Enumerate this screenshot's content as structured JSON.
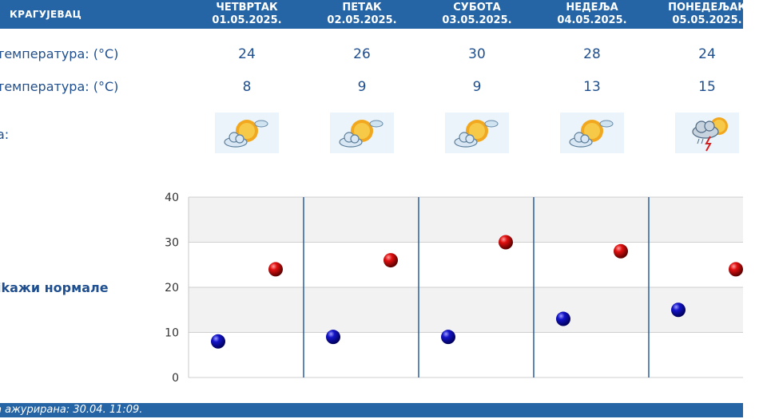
{
  "header": {
    "city": "КРАГУЈЕВАЦ"
  },
  "days": [
    {
      "name": "ЧЕТВРТАК",
      "date": "01.05.2025.",
      "max": "24",
      "min": "8",
      "icon": "partly-cloudy-sun-icon"
    },
    {
      "name": "ПЕТАК",
      "date": "02.05.2025.",
      "max": "26",
      "min": "9",
      "icon": "partly-cloudy-sun-icon"
    },
    {
      "name": "СУБОТА",
      "date": "03.05.2025.",
      "max": "30",
      "min": "9",
      "icon": "partly-cloudy-sun-icon"
    },
    {
      "name": "НЕДЕЉА",
      "date": "04.05.2025.",
      "max": "28",
      "min": "13",
      "icon": "partly-cloudy-sun-icon"
    },
    {
      "name": "ПОНЕДЕЉАК",
      "date": "05.05.2025.",
      "max": "24",
      "min": "15",
      "icon": "thunderstorm-sun-icon"
    }
  ],
  "rows": {
    "max_label": "температура: (°C)",
    "min_label": "температура: (°C)",
    "weather_label": "а:"
  },
  "normals_link": "ikaжи нормале",
  "footer": {
    "updated": "а ажурирана:  30.04.  11:09."
  },
  "colors": {
    "header": "#2565a6",
    "max_marker": "#cc0000",
    "min_marker": "#1010aa",
    "text": "#1f4f8f"
  },
  "chart_data": {
    "type": "scatter",
    "categories": [
      "01.05.2025.",
      "02.05.2025.",
      "03.05.2025.",
      "04.05.2025.",
      "05.05.2025."
    ],
    "series": [
      {
        "values": [
          24,
          26,
          30,
          28,
          24
        ],
        "color": "#cc0000"
      },
      {
        "values": [
          8,
          9,
          9,
          13,
          15
        ],
        "color": "#1010aa"
      }
    ],
    "y_ticks": [
      "0",
      "10",
      "20",
      "30",
      "40"
    ],
    "ylim": [
      0,
      40
    ],
    "grid": true
  }
}
